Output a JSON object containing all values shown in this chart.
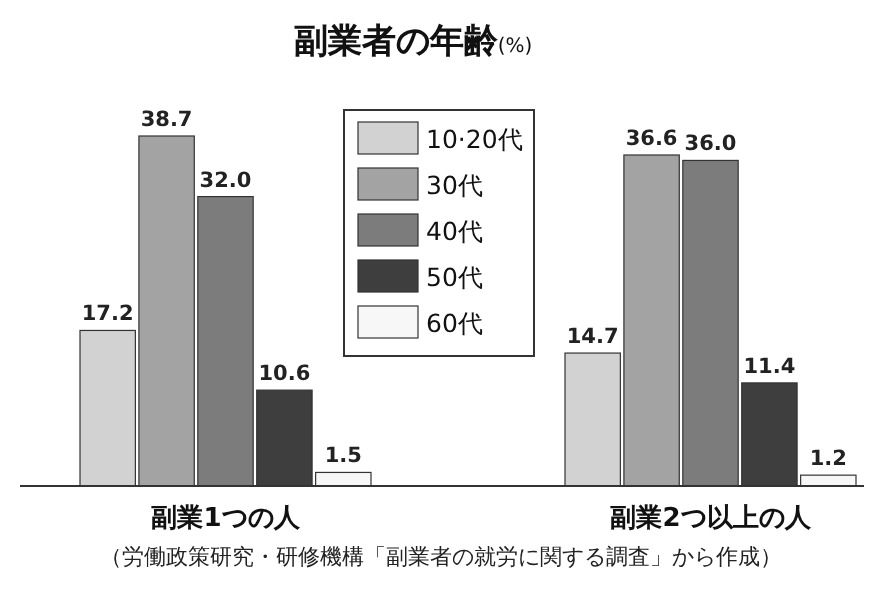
{
  "chart_data": {
    "type": "bar",
    "title": "副業者の年齢",
    "subtitle": "(%)",
    "categories": [
      "副業1つの人",
      "副業2つ以上の人"
    ],
    "series": [
      {
        "name": "10·20代",
        "color": "#d2d2d2",
        "values": [
          17.2,
          14.7
        ],
        "value_labels": [
          "17.2",
          "14.7"
        ]
      },
      {
        "name": "30代",
        "color": "#a3a3a3",
        "values": [
          38.7,
          36.6
        ],
        "value_labels": [
          "38.7",
          "36.6"
        ]
      },
      {
        "name": "40代",
        "color": "#7c7c7c",
        "values": [
          32.0,
          36.0
        ],
        "value_labels": [
          "32.0",
          "36.0"
        ]
      },
      {
        "name": "50代",
        "color": "#3e3e3e",
        "values": [
          10.6,
          11.4
        ],
        "value_labels": [
          "10.6",
          "11.4"
        ]
      },
      {
        "name": "60代",
        "color": "#f7f7f7",
        "values": [
          1.5,
          1.2
        ],
        "value_labels": [
          "1.5",
          "1.2"
        ]
      }
    ],
    "legend": "top",
    "grid": false,
    "annotations": [
      "（労働政策研究・研修機構「副業者の就労に関する調査」から作成）"
    ]
  }
}
